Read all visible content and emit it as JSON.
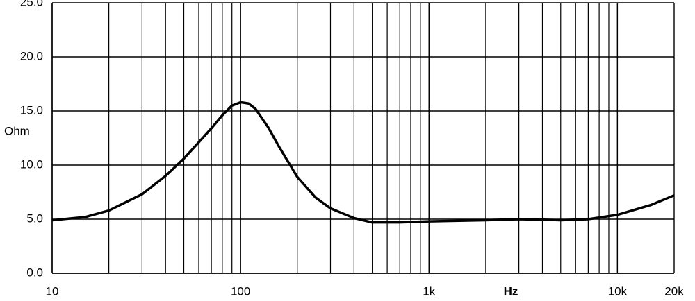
{
  "chart_data": {
    "type": "line",
    "x_label": "Hz",
    "y_label": "Ohm",
    "log_x": true,
    "grid": true,
    "x": [
      10,
      15,
      20,
      30,
      40,
      50,
      60,
      70,
      80,
      90,
      100,
      110,
      120,
      140,
      160,
      200,
      250,
      300,
      400,
      500,
      700,
      1000,
      2000,
      3000,
      4000,
      5000,
      7000,
      10000,
      15000,
      20000
    ],
    "series": [
      {
        "color": "#000000",
        "values": [
          4.9,
          5.2,
          5.8,
          7.3,
          9.0,
          10.6,
          12.1,
          13.4,
          14.6,
          15.5,
          15.8,
          15.7,
          15.2,
          13.5,
          11.7,
          8.9,
          7.0,
          6.0,
          5.1,
          4.7,
          4.7,
          4.8,
          4.9,
          5.0,
          4.95,
          4.9,
          5.0,
          5.4,
          6.3,
          7.2
        ]
      }
    ],
    "xlim": [
      10,
      20000
    ],
    "ylim": [
      0,
      25
    ],
    "xticks": [
      10,
      100,
      {
        "value": 1000,
        "label": "1k"
      },
      {
        "value": 10000,
        "label": "10k"
      },
      {
        "value": 20000,
        "label": "20k"
      }
    ],
    "yticks": [
      {
        "value": 0,
        "label": "0.0"
      },
      {
        "value": 5,
        "label": "5.0"
      },
      {
        "value": 10,
        "label": "10.0"
      },
      {
        "value": 15,
        "label": "15.0"
      },
      {
        "value": 20,
        "label": "20.0"
      },
      {
        "value": 25,
        "label": "25.0"
      }
    ]
  }
}
